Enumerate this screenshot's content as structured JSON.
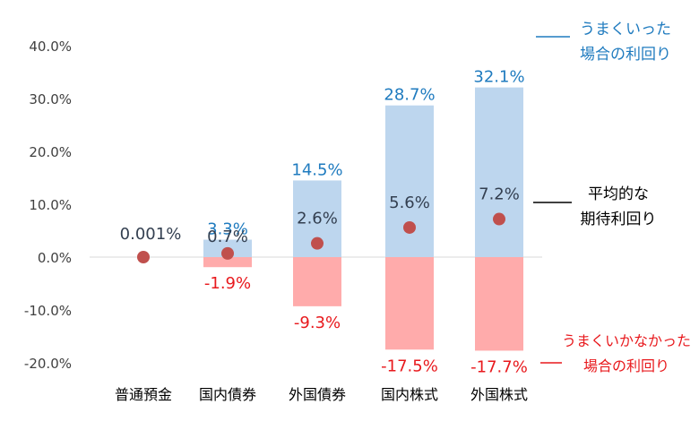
{
  "chart_data": {
    "type": "bar",
    "categories": [
      "普通預金",
      "国内債券",
      "外国債券",
      "国内株式",
      "外国株式"
    ],
    "series": [
      {
        "values": [
          0.0,
          3.3,
          14.5,
          28.7,
          32.1
        ]
      },
      {
        "values": [
          0.0,
          -1.9,
          -9.3,
          -17.5,
          -17.7
        ]
      },
      {
        "values": [
          0.001,
          0.7,
          2.6,
          5.6,
          7.2
        ]
      }
    ],
    "labels": {
      "upside": [
        "",
        "3.3%",
        "14.5%",
        "28.7%",
        "32.1%"
      ],
      "downside": [
        "",
        "-1.9%",
        "-9.3%",
        "-17.5%",
        "-17.7%"
      ],
      "average": [
        "0.001%",
        "0.7%",
        "2.6%",
        "5.6%",
        "7.2%"
      ]
    },
    "yticks": [
      "40.0%",
      "30.0%",
      "20.0%",
      "10.0%",
      "0.0%",
      "-10.0%",
      "-20.0%"
    ],
    "ylim": [
      -20,
      40
    ],
    "annotations": {
      "upside_line1": "うまくいった",
      "upside_line2": "場合の利回り",
      "average_line1": "平均的な",
      "average_line2": "期待利回り",
      "downside_line1": "うまくいかなかった",
      "downside_line2": "場合の利回り"
    },
    "colors": {
      "upside_bar": "#bdd6ee",
      "downside_bar": "#ffabab",
      "average_dot": "#c0504d",
      "upside_text": "#1f7bbf",
      "downside_text": "#e8191d",
      "average_text": "#333f50",
      "axis_text": "#404040"
    }
  }
}
